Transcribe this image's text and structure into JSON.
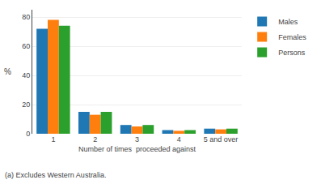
{
  "chart_data": {
    "type": "bar",
    "categories": [
      "1",
      "2",
      "3",
      "4",
      "5 and over"
    ],
    "series": [
      {
        "name": "Males",
        "values": [
          72,
          15,
          6,
          2.5,
          3.5
        ]
      },
      {
        "name": "Females",
        "values": [
          78,
          13,
          5,
          2.0,
          3.0
        ]
      },
      {
        "name": "Persons",
        "values": [
          74,
          15,
          6,
          2.5,
          3.5
        ]
      }
    ],
    "xlabel": "Number of times  proceeded against",
    "ylabel": "%",
    "ylim": [
      0,
      85
    ],
    "yticks": [
      0,
      20,
      40,
      60,
      80
    ],
    "grid": true,
    "legend": "right",
    "annotations": [
      "(a) Excludes Western Australia."
    ]
  }
}
